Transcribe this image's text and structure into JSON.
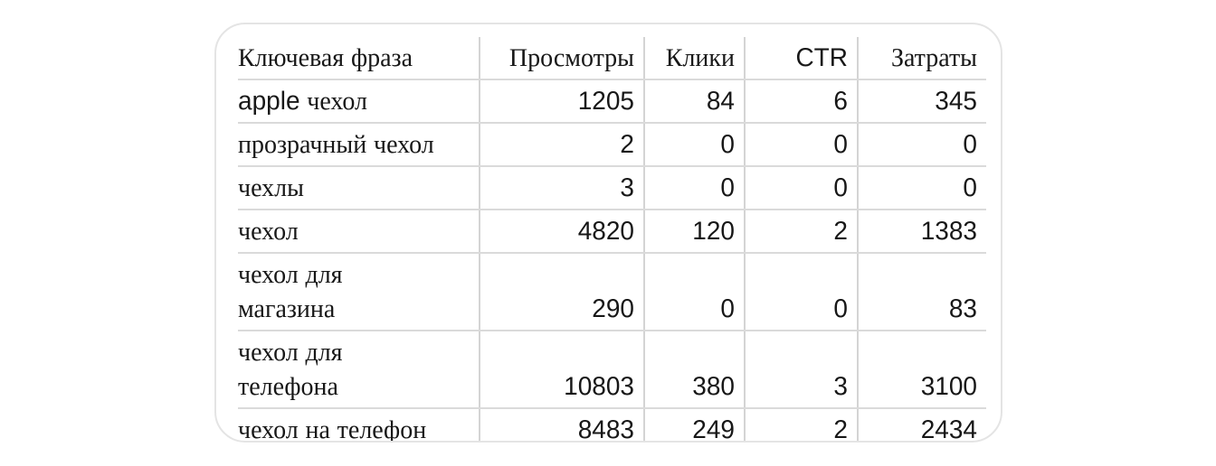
{
  "table": {
    "columns": [
      {
        "key": "keyword",
        "label": "Ключевая фраза"
      },
      {
        "key": "views",
        "label": "Просмотры"
      },
      {
        "key": "clicks",
        "label": "Клики"
      },
      {
        "key": "ctr",
        "label": "CTR"
      },
      {
        "key": "cost",
        "label": "Затраты"
      }
    ],
    "rows": [
      {
        "keyword": "apple чехол",
        "views": "1205",
        "clicks": "84",
        "ctr": "6",
        "cost": "345"
      },
      {
        "keyword": "прозрачный чехол",
        "views": "2",
        "clicks": "0",
        "ctr": "0",
        "cost": "0"
      },
      {
        "keyword": "чехлы",
        "views": "3",
        "clicks": "0",
        "ctr": "0",
        "cost": "0"
      },
      {
        "keyword": "чехол",
        "views": "4820",
        "clicks": "120",
        "ctr": "2",
        "cost": "1383"
      },
      {
        "keyword": "чехол для\nмагазина",
        "views": "290",
        "clicks": "0",
        "ctr": "0",
        "cost": "83"
      },
      {
        "keyword": "чехол для\nтелефона",
        "views": "10803",
        "clicks": "380",
        "ctr": "3",
        "cost": "3100"
      },
      {
        "keyword": "чехол на телефон",
        "views": "8483",
        "clicks": "249",
        "ctr": "2",
        "cost": "2434"
      }
    ]
  },
  "colors": {
    "text": "#171717",
    "grid_line": "#d4d4d4",
    "card_border": "#e4e4e4",
    "background": "#ffffff"
  },
  "chart_data": {
    "type": "table",
    "title": "",
    "columns": [
      "Ключевая фраза",
      "Просмотры",
      "Клики",
      "CTR",
      "Затраты"
    ],
    "rows": [
      [
        "apple чехол",
        1205,
        84,
        6,
        345
      ],
      [
        "прозрачный чехол",
        2,
        0,
        0,
        0
      ],
      [
        "чехлы",
        3,
        0,
        0,
        0
      ],
      [
        "чехол",
        4820,
        120,
        2,
        1383
      ],
      [
        "чехол для магазина",
        290,
        0,
        0,
        83
      ],
      [
        "чехол для телефона",
        10803,
        380,
        3,
        3100
      ],
      [
        "чехол на телефон",
        8483,
        249,
        2,
        2434
      ]
    ],
    "layout_hints": {
      "numeric_align": "right",
      "grid": "light-gray full grid, no outer table border",
      "container": "white rounded card with light gray border"
    }
  }
}
